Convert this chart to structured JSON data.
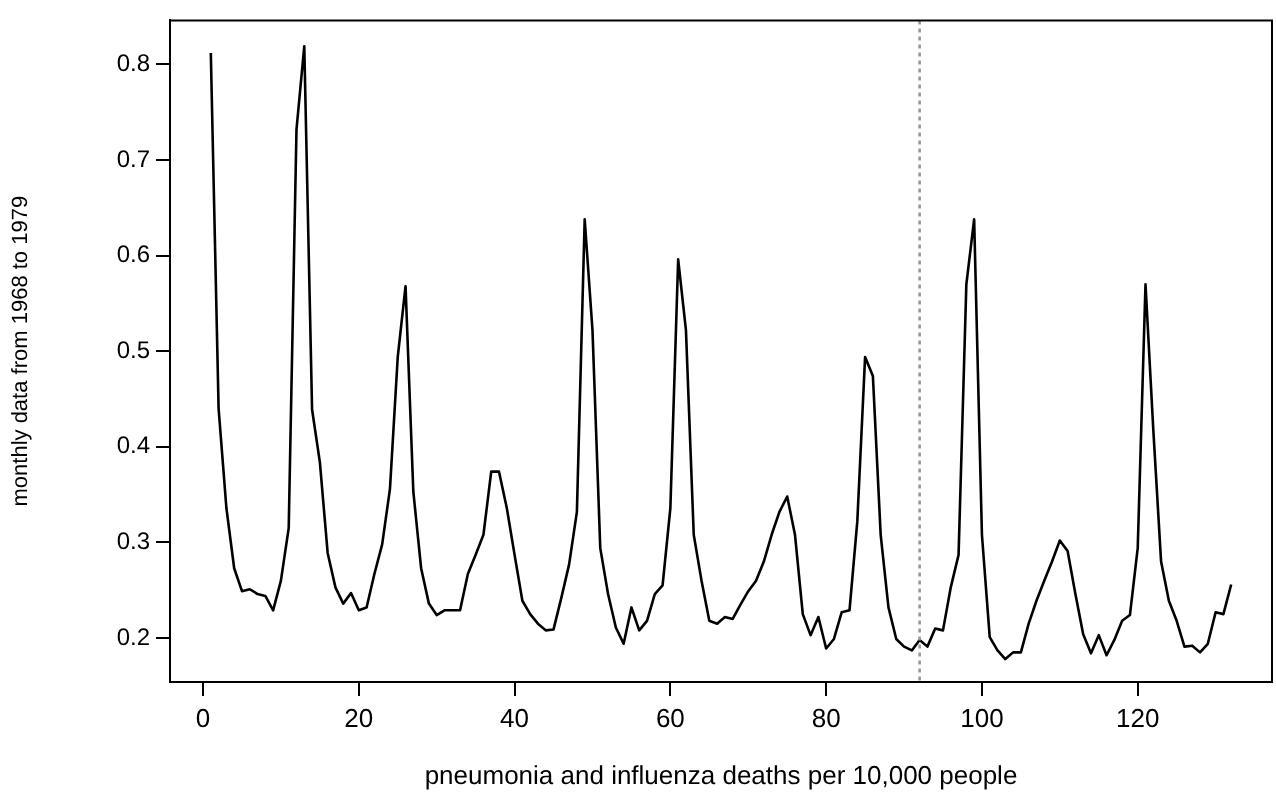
{
  "chart_data": {
    "type": "line",
    "xlabel": "pneumonia and influenza deaths per 10,000 people",
    "ylabel": "monthly data from 1968 to 1979",
    "x": [
      1,
      2,
      3,
      4,
      5,
      6,
      7,
      8,
      9,
      10,
      11,
      12,
      13,
      14,
      15,
      16,
      17,
      18,
      19,
      20,
      21,
      22,
      23,
      24,
      25,
      26,
      27,
      28,
      29,
      30,
      31,
      32,
      33,
      34,
      35,
      36,
      37,
      38,
      39,
      40,
      41,
      42,
      43,
      44,
      45,
      46,
      47,
      48,
      49,
      50,
      51,
      52,
      53,
      54,
      55,
      56,
      57,
      58,
      59,
      60,
      61,
      62,
      63,
      64,
      65,
      66,
      67,
      68,
      69,
      70,
      71,
      72,
      73,
      74,
      75,
      76,
      77,
      78,
      79,
      80,
      81,
      82,
      83,
      84,
      85,
      86,
      87,
      88,
      89,
      90,
      91,
      92,
      93,
      94,
      95,
      96,
      97,
      98,
      99,
      100,
      101,
      102,
      103,
      104,
      105,
      106,
      107,
      108,
      109,
      110,
      111,
      112,
      113,
      114,
      115,
      116,
      117,
      118,
      119,
      120,
      121,
      122,
      123,
      124,
      125,
      126,
      127,
      128,
      129,
      130,
      131,
      132
    ],
    "series": [
      {
        "color": "#000000",
        "values": [
          0.812,
          0.44,
          0.336,
          0.273,
          0.249,
          0.251,
          0.246,
          0.244,
          0.229,
          0.26,
          0.315,
          0.732,
          0.819,
          0.439,
          0.384,
          0.289,
          0.253,
          0.236,
          0.247,
          0.229,
          0.232,
          0.267,
          0.298,
          0.356,
          0.494,
          0.568,
          0.353,
          0.273,
          0.236,
          0.224,
          0.229,
          0.229,
          0.229,
          0.267,
          0.287,
          0.308,
          0.374,
          0.374,
          0.336,
          0.287,
          0.239,
          0.225,
          0.215,
          0.208,
          0.209,
          0.242,
          0.277,
          0.332,
          0.638,
          0.522,
          0.294,
          0.246,
          0.211,
          0.194,
          0.232,
          0.208,
          0.218,
          0.246,
          0.255,
          0.336,
          0.596,
          0.522,
          0.308,
          0.26,
          0.218,
          0.215,
          0.222,
          0.22,
          0.235,
          0.249,
          0.26,
          0.28,
          0.308,
          0.332,
          0.348,
          0.308,
          0.225,
          0.203,
          0.222,
          0.189,
          0.199,
          0.227,
          0.229,
          0.322,
          0.494,
          0.474,
          0.308,
          0.232,
          0.199,
          0.191,
          0.187,
          0.198,
          0.191,
          0.21,
          0.208,
          0.253,
          0.287,
          0.57,
          0.638,
          0.308,
          0.201,
          0.187,
          0.178,
          0.185,
          0.185,
          0.215,
          0.239,
          0.26,
          0.28,
          0.302,
          0.291,
          0.246,
          0.204,
          0.184,
          0.203,
          0.182,
          0.198,
          0.218,
          0.224,
          0.294,
          0.57,
          0.418,
          0.28,
          0.239,
          0.218,
          0.191,
          0.192,
          0.185,
          0.194,
          0.227,
          0.225,
          0.256
        ]
      }
    ],
    "xlim": [
      -4.24,
      137.24
    ],
    "xticks": [
      0,
      20,
      40,
      60,
      80,
      100,
      120
    ],
    "ylim": [
      0.154,
      0.846
    ],
    "yticks": [
      0.2,
      0.3,
      0.4,
      0.5,
      0.6,
      0.7,
      0.8
    ],
    "grid": false,
    "legend": false,
    "marker": "none",
    "line_style": "solid",
    "ref_lines": [
      {
        "axis": "x",
        "value": 92,
        "color": "#999999",
        "line_style": "dotted"
      }
    ]
  }
}
